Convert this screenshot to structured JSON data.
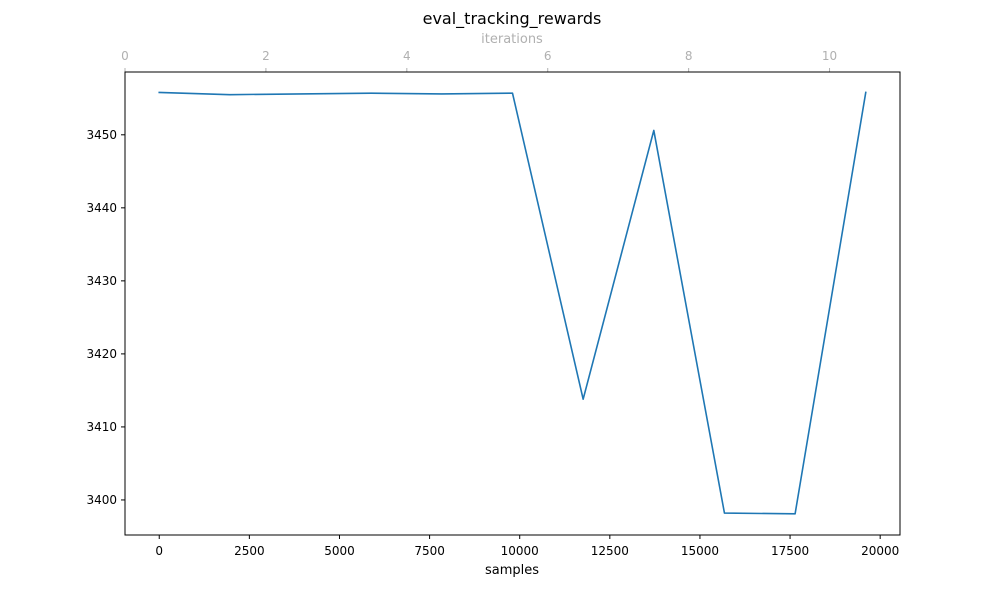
{
  "chart_data": {
    "type": "line",
    "title": "eval_tracking_rewards",
    "xlabel": "samples",
    "x2label": "iterations",
    "ylabel": "",
    "grid": false,
    "xlim": [
      -950,
      20550
    ],
    "ylim": [
      3395.2,
      3458.6
    ],
    "x2lim": [
      0,
      11
    ],
    "xticks": [
      0,
      2500,
      5000,
      7500,
      10000,
      12500,
      15000,
      17500,
      20000
    ],
    "xtick_labels": [
      "0",
      "2500",
      "5000",
      "7500",
      "10000",
      "12500",
      "15000",
      "17500",
      "20000"
    ],
    "x2ticks": [
      0,
      2,
      4,
      6,
      8,
      10
    ],
    "x2tick_labels": [
      "0",
      "2",
      "4",
      "6",
      "8",
      "10"
    ],
    "yticks": [
      3400,
      3410,
      3420,
      3430,
      3440,
      3450
    ],
    "ytick_labels": [
      "3400",
      "3410",
      "3420",
      "3430",
      "3440",
      "3450"
    ],
    "series": [
      {
        "color": "#1f77b4",
        "x": [
          0,
          1960,
          3920,
          5880,
          7840,
          9800,
          11760,
          13720,
          15680,
          17640,
          19600
        ],
        "y": [
          3455.8,
          3455.5,
          3455.6,
          3455.7,
          3455.6,
          3455.7,
          3413.8,
          3450.6,
          3398.2,
          3398.1,
          3455.8
        ]
      }
    ]
  }
}
